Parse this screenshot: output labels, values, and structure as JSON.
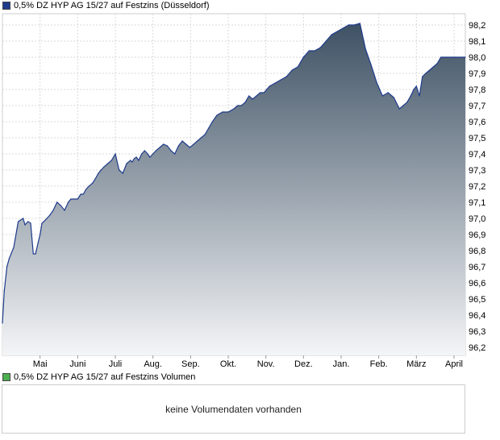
{
  "legend": {
    "price_label": "0,5% DZ HYP AG 15/27 auf Festzins (Düsseldorf)",
    "price_color": "#1f3b8c",
    "volume_label": "0,5% DZ HYP AG 15/27 auf Festzins Volumen",
    "volume_color": "#4caf50"
  },
  "volume": {
    "message": "keine Volumendaten vorhanden"
  },
  "chart_data": {
    "type": "area",
    "title": "0,5% DZ HYP AG 15/27 auf Festzins (Düsseldorf)",
    "xlabel": "",
    "ylabel": "",
    "ylim": [
      96.15,
      98.27
    ],
    "y_ticks": [
      "96,2",
      "96,3",
      "96,4",
      "96,5",
      "96,6",
      "96,7",
      "96,8",
      "96,9",
      "97,0",
      "97,1",
      "97,2",
      "97,3",
      "97,4",
      "97,5",
      "97,6",
      "97,7",
      "97,8",
      "97,9",
      "98,0",
      "98,1",
      "98,2"
    ],
    "y_tick_values": [
      96.2,
      96.3,
      96.4,
      96.5,
      96.6,
      96.7,
      96.8,
      96.9,
      97.0,
      97.1,
      97.2,
      97.3,
      97.4,
      97.5,
      97.6,
      97.7,
      97.8,
      97.9,
      98.0,
      98.1,
      98.2
    ],
    "x_ticks": [
      "Mai",
      "Juni",
      "Juli",
      "Aug.",
      "Sep.",
      "Okt.",
      "Nov.",
      "Dez.",
      "Jan.",
      "Feb.",
      "März",
      "April"
    ],
    "x_tick_pos": [
      1.0,
      2.0,
      3.0,
      4.0,
      5.0,
      6.0,
      7.0,
      8.0,
      9.0,
      10.0,
      11.0,
      12.0
    ],
    "grid": true,
    "line_color": "#1f3b8c",
    "fill_top_color": "#3e5164",
    "fill_bottom_color": "#f4f5f7",
    "series": [
      {
        "x": [
          0.0,
          0.05,
          0.12,
          0.18,
          0.3,
          0.42,
          0.55,
          0.6,
          0.68,
          0.75,
          0.82,
          0.88,
          0.95,
          1.0,
          1.05,
          1.1,
          1.18,
          1.26,
          1.35,
          1.45,
          1.55,
          1.65,
          1.75,
          1.82,
          1.9,
          2.0,
          2.08,
          2.15,
          2.22,
          2.3,
          2.4,
          2.48,
          2.55,
          2.62,
          2.7,
          2.8,
          2.9,
          3.0,
          3.1,
          3.2,
          3.3,
          3.4,
          3.45,
          3.5,
          3.56,
          3.62,
          3.7,
          3.78,
          3.86,
          3.92,
          4.0,
          4.08,
          4.18,
          4.28,
          4.38,
          4.48,
          4.58,
          4.68,
          4.78,
          4.88,
          4.98,
          5.08,
          5.18,
          5.28,
          5.38,
          5.48,
          5.58,
          5.7,
          5.85,
          6.0,
          6.15,
          6.25,
          6.35,
          6.45,
          6.55,
          6.65,
          6.75,
          6.85,
          6.95,
          7.1,
          7.25,
          7.4,
          7.55,
          7.7,
          7.85,
          8.0,
          8.15,
          8.3,
          8.45,
          8.6,
          8.75,
          8.9,
          9.05,
          9.2,
          9.35,
          9.5,
          9.65,
          9.8,
          9.95,
          10.1,
          10.25,
          10.4,
          10.55,
          10.65,
          10.75,
          10.85,
          10.93,
          11.0,
          11.08,
          11.16,
          11.25,
          11.35,
          11.45,
          11.55,
          11.65,
          11.75,
          11.85,
          11.95,
          12.05,
          12.15,
          12.3
        ],
        "values": [
          96.35,
          96.55,
          96.7,
          96.75,
          96.82,
          96.98,
          97.0,
          96.96,
          96.98,
          96.97,
          96.78,
          96.78,
          96.85,
          96.9,
          96.97,
          96.98,
          97.0,
          97.02,
          97.05,
          97.1,
          97.08,
          97.05,
          97.1,
          97.12,
          97.12,
          97.12,
          97.15,
          97.15,
          97.18,
          97.2,
          97.22,
          97.25,
          97.28,
          97.3,
          97.32,
          97.34,
          97.36,
          97.4,
          97.3,
          97.28,
          97.34,
          97.36,
          97.35,
          97.37,
          97.38,
          97.36,
          97.4,
          97.42,
          97.4,
          97.38,
          97.4,
          97.42,
          97.44,
          97.46,
          97.45,
          97.42,
          97.4,
          97.45,
          97.48,
          97.46,
          97.44,
          97.46,
          97.48,
          97.5,
          97.52,
          97.56,
          97.6,
          97.64,
          97.66,
          97.66,
          97.68,
          97.7,
          97.7,
          97.72,
          97.76,
          97.74,
          97.76,
          97.78,
          97.78,
          97.82,
          97.84,
          97.86,
          97.88,
          97.92,
          97.94,
          98.0,
          98.04,
          98.04,
          98.06,
          98.1,
          98.14,
          98.16,
          98.18,
          98.2,
          98.2,
          98.21,
          98.05,
          97.95,
          97.84,
          97.76,
          97.78,
          97.75,
          97.68,
          97.7,
          97.72,
          97.76,
          97.8,
          97.82,
          97.76,
          97.88,
          97.9,
          97.92,
          97.94,
          97.96,
          98.0,
          98.0,
          98.0,
          98.0,
          98.0,
          98.0,
          98.0
        ]
      }
    ]
  }
}
